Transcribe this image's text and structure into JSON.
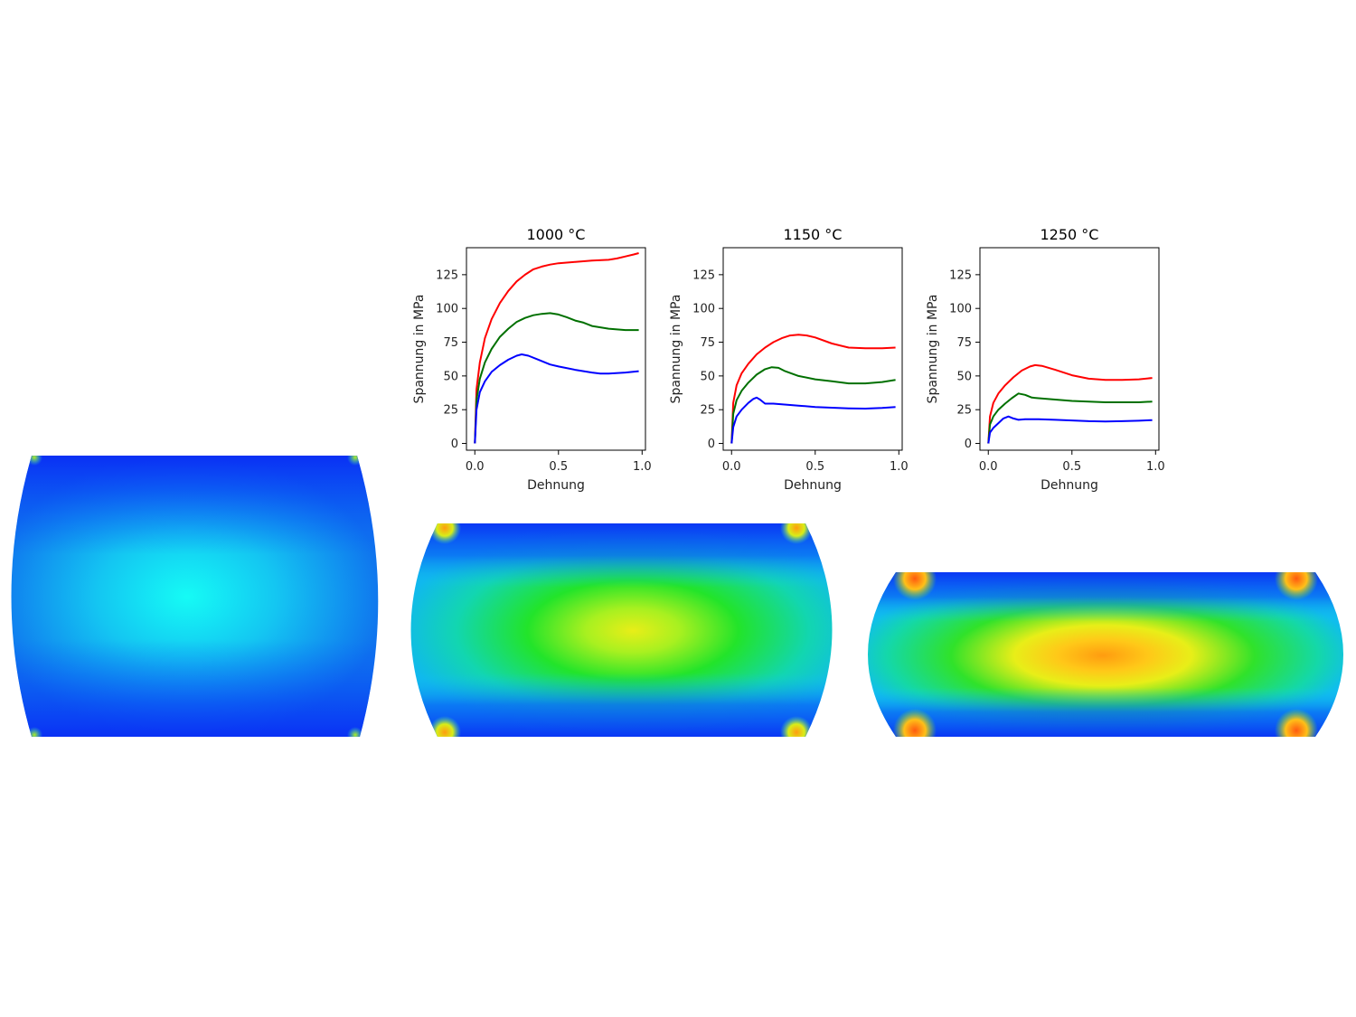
{
  "chart_data": [
    {
      "type": "line",
      "title": "1000 °C",
      "xlabel": "Dehnung",
      "ylabel": "Spannung in MPa",
      "xlim": [
        -0.05,
        1.02
      ],
      "ylim": [
        -5,
        145
      ],
      "xticks": [
        0.0,
        0.5,
        1.0
      ],
      "xtick_labels": [
        "0.0",
        "0.5",
        "1.0"
      ],
      "yticks": [
        0,
        25,
        50,
        75,
        100,
        125
      ],
      "ytick_labels": [
        "0",
        "25",
        "50",
        "75",
        "100",
        "125"
      ],
      "series": [
        {
          "color": "#ff0000",
          "x": [
            0,
            0.01,
            0.03,
            0.06,
            0.1,
            0.15,
            0.2,
            0.25,
            0.3,
            0.35,
            0.4,
            0.45,
            0.5,
            0.6,
            0.7,
            0.8,
            0.85,
            0.9,
            0.95,
            0.98
          ],
          "y": [
            0,
            40,
            60,
            78,
            92,
            104,
            113,
            120,
            125,
            129,
            131,
            132.5,
            133.5,
            134.5,
            135.5,
            136,
            137,
            138.5,
            140,
            141
          ]
        },
        {
          "color": "#007000",
          "x": [
            0,
            0.01,
            0.03,
            0.06,
            0.1,
            0.15,
            0.2,
            0.25,
            0.3,
            0.35,
            0.4,
            0.45,
            0.5,
            0.55,
            0.6,
            0.65,
            0.7,
            0.8,
            0.9,
            0.98
          ],
          "y": [
            0,
            32,
            48,
            60,
            70,
            79,
            85,
            90,
            93,
            95,
            96,
            96.5,
            95.5,
            93.5,
            91,
            89.5,
            87,
            85,
            84,
            84
          ]
        },
        {
          "color": "#0000ff",
          "x": [
            0,
            0.01,
            0.03,
            0.06,
            0.1,
            0.15,
            0.2,
            0.25,
            0.28,
            0.32,
            0.38,
            0.45,
            0.5,
            0.6,
            0.7,
            0.75,
            0.8,
            0.9,
            0.98
          ],
          "y": [
            0,
            25,
            38,
            46,
            53,
            58,
            62,
            65,
            66,
            65,
            62,
            58.5,
            57,
            54.5,
            52.5,
            51.8,
            51.8,
            52.5,
            53.5
          ]
        }
      ]
    },
    {
      "type": "line",
      "title": "1150 °C",
      "xlabel": "Dehnung",
      "ylabel": "Spannung in MPa",
      "xlim": [
        -0.05,
        1.02
      ],
      "ylim": [
        -5,
        145
      ],
      "xticks": [
        0.0,
        0.5,
        1.0
      ],
      "xtick_labels": [
        "0.0",
        "0.5",
        "1.0"
      ],
      "yticks": [
        0,
        25,
        50,
        75,
        100,
        125
      ],
      "ytick_labels": [
        "0",
        "25",
        "50",
        "75",
        "100",
        "125"
      ],
      "series": [
        {
          "color": "#ff0000",
          "x": [
            0,
            0.01,
            0.03,
            0.06,
            0.1,
            0.15,
            0.2,
            0.25,
            0.3,
            0.35,
            0.4,
            0.45,
            0.5,
            0.6,
            0.7,
            0.8,
            0.9,
            0.98
          ],
          "y": [
            0,
            30,
            43,
            52,
            59,
            66,
            71,
            75,
            78,
            80,
            80.5,
            80,
            78.5,
            74,
            71,
            70.5,
            70.5,
            71
          ]
        },
        {
          "color": "#007000",
          "x": [
            0,
            0.01,
            0.03,
            0.06,
            0.1,
            0.15,
            0.2,
            0.24,
            0.28,
            0.32,
            0.4,
            0.5,
            0.6,
            0.7,
            0.8,
            0.9,
            0.98
          ],
          "y": [
            0,
            22,
            32,
            39,
            45,
            51,
            55,
            56.5,
            56,
            53.5,
            50,
            47.5,
            46,
            44.5,
            44.5,
            45.5,
            47
          ]
        },
        {
          "color": "#0000ff",
          "x": [
            0,
            0.01,
            0.03,
            0.06,
            0.1,
            0.13,
            0.15,
            0.17,
            0.2,
            0.25,
            0.3,
            0.4,
            0.5,
            0.6,
            0.7,
            0.8,
            0.9,
            0.98
          ],
          "y": [
            0,
            12,
            20,
            25,
            30,
            33,
            34,
            32.5,
            29.5,
            29.5,
            29,
            28,
            27,
            26.5,
            26,
            25.8,
            26.3,
            27
          ]
        }
      ]
    },
    {
      "type": "line",
      "title": "1250 °C",
      "xlabel": "Dehnung",
      "ylabel": "Spannung in MPa",
      "xlim": [
        -0.05,
        1.02
      ],
      "ylim": [
        -5,
        145
      ],
      "xticks": [
        0.0,
        0.5,
        1.0
      ],
      "xtick_labels": [
        "0.0",
        "0.5",
        "1.0"
      ],
      "yticks": [
        0,
        25,
        50,
        75,
        100,
        125
      ],
      "ytick_labels": [
        "0",
        "25",
        "50",
        "75",
        "100",
        "125"
      ],
      "series": [
        {
          "color": "#ff0000",
          "x": [
            0,
            0.01,
            0.03,
            0.06,
            0.1,
            0.15,
            0.2,
            0.25,
            0.28,
            0.32,
            0.4,
            0.5,
            0.6,
            0.7,
            0.8,
            0.9,
            0.98
          ],
          "y": [
            0,
            20,
            30,
            37,
            43,
            49,
            54,
            57,
            58,
            57.5,
            54.5,
            50.5,
            48,
            47,
            47,
            47.5,
            48.5
          ]
        },
        {
          "color": "#007000",
          "x": [
            0,
            0.01,
            0.03,
            0.06,
            0.1,
            0.14,
            0.18,
            0.22,
            0.26,
            0.3,
            0.4,
            0.5,
            0.6,
            0.7,
            0.8,
            0.9,
            0.98
          ],
          "y": [
            0,
            14,
            20,
            25,
            29.5,
            33.5,
            37,
            36,
            34,
            33.5,
            32.5,
            31.5,
            31,
            30.5,
            30.5,
            30.5,
            31
          ]
        },
        {
          "color": "#0000ff",
          "x": [
            0,
            0.01,
            0.03,
            0.06,
            0.09,
            0.12,
            0.15,
            0.18,
            0.22,
            0.3,
            0.4,
            0.5,
            0.6,
            0.7,
            0.8,
            0.9,
            0.98
          ],
          "y": [
            0,
            8,
            11.5,
            15,
            18.5,
            20,
            18.5,
            17.5,
            18,
            18,
            17.5,
            17,
            16.5,
            16.3,
            16.5,
            16.8,
            17.3
          ]
        }
      ]
    }
  ],
  "fe_contours": [
    {
      "level": 0.0
    },
    {
      "level": 0.55
    },
    {
      "level": 0.8
    }
  ]
}
